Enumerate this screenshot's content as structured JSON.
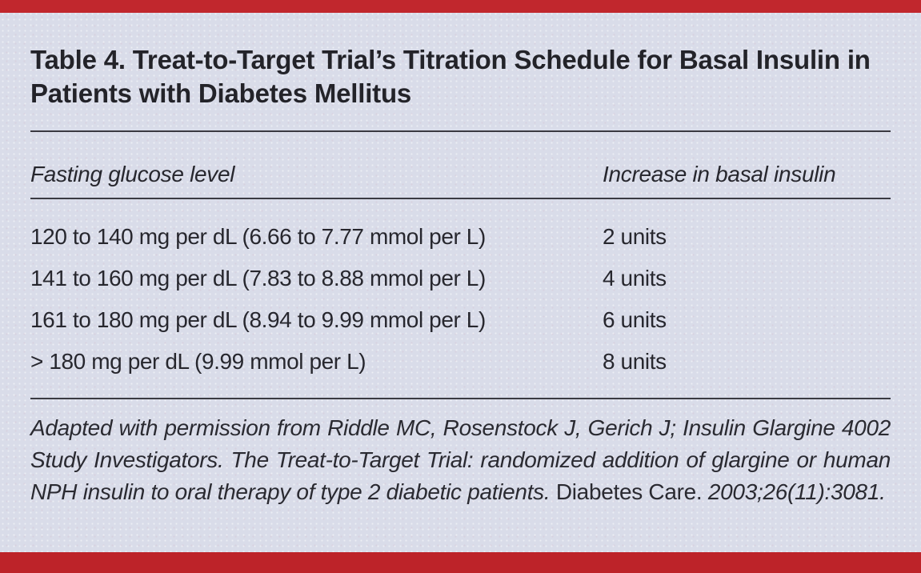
{
  "title": "Table 4. Treat-to-Target Trial’s Titration Schedule for Basal Insulin in Patients with Diabetes Mellitus",
  "table": {
    "columns": [
      "Fasting glucose level",
      "Increase in basal insulin"
    ],
    "rows": [
      {
        "glucose": "120 to 140 mg per dL (6.66 to 7.77 mmol per L)",
        "increase": "2 units"
      },
      {
        "glucose": "141 to 160 mg per dL (7.83 to 8.88 mmol per L)",
        "increase": "4 units"
      },
      {
        "glucose": "161 to 180 mg per dL (8.94 to 9.99 mmol per L)",
        "increase": "6 units"
      },
      {
        "glucose": "> 180 mg per dL (9.99 mmol per L)",
        "increase": "8 units"
      }
    ]
  },
  "footnote": {
    "italic_part_1": "Adapted with permission from Riddle MC, Rosenstock J, Gerich J; Insulin Glargine 4002 Study Investigators. The Treat-to-Target Trial: randomized addition of glargine or human NPH insulin to oral therapy of type 2 diabetic patients.",
    "roman_part": "Diabetes Care.",
    "italic_part_2": "2003;26(11):3081."
  },
  "colors": {
    "accent_red_top": "#c1272d",
    "accent_red_bottom": "#bd2329",
    "background": "#d9dce9",
    "text": "#27272e",
    "rule": "#3a3a42"
  }
}
